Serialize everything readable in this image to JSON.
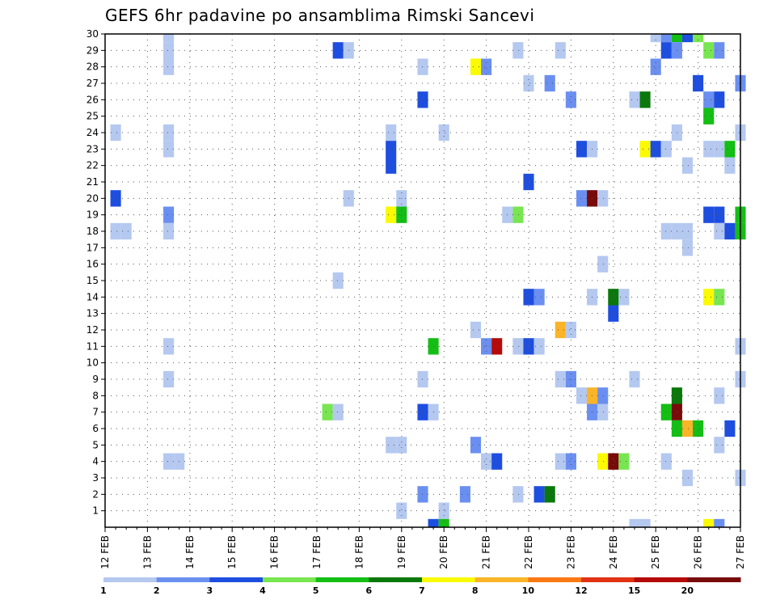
{
  "chart_data": {
    "type": "heatmap",
    "title": "GEFS 6hr padavine po ansamblima Rimski Sancevi",
    "xlabel": "",
    "ylabel": "",
    "x_tick_labels": [
      "12 FEB",
      "13 FEB",
      "14 FEB",
      "15 FEB",
      "16 FEB",
      "17 FEB",
      "18 FEB",
      "19 FEB",
      "20 FEB",
      "21 FEB",
      "22 FEB",
      "23 FEB",
      "24 FEB",
      "25 FEB",
      "26 FEB",
      "27 FEB"
    ],
    "x_range_days": [
      12,
      27
    ],
    "time_step_hours": 6,
    "y_tick_labels": [
      "1",
      "2",
      "3",
      "4",
      "5",
      "6",
      "7",
      "8",
      "9",
      "10",
      "11",
      "12",
      "13",
      "14",
      "15",
      "16",
      "17",
      "18",
      "19",
      "20",
      "21",
      "22",
      "23",
      "24",
      "25",
      "26",
      "27",
      "28",
      "29",
      "30"
    ],
    "y_range": [
      0,
      30
    ],
    "grid": true,
    "legend_placement": "bottom",
    "legend_labels": [
      "1",
      "2",
      "3",
      "4",
      "5",
      "6",
      "7",
      "8",
      "10",
      "12",
      "15",
      "20"
    ],
    "legend_colors": [
      "#b4c8f0",
      "#6a8ff0",
      "#1e4ee0",
      "#78e650",
      "#14be14",
      "#0a780a",
      "#fafa00",
      "#fab428",
      "#fa7814",
      "#e13214",
      "#b40a0a",
      "#780a0a"
    ],
    "points": [
      {
        "member": 30,
        "time": "25.00",
        "category": 0
      },
      {
        "member": 30,
        "time": "25.25",
        "category": 1
      },
      {
        "member": 30,
        "time": "25.50",
        "category": 4
      },
      {
        "member": 30,
        "time": "25.75",
        "category": 2
      },
      {
        "member": 30,
        "time": "26.00",
        "category": 3
      },
      {
        "member": 30,
        "time": "13.50",
        "category": 0
      },
      {
        "member": 29,
        "time": "13.50",
        "category": 0
      },
      {
        "member": 28,
        "time": "13.50",
        "category": 0
      },
      {
        "member": 29,
        "time": "17.50",
        "category": 2
      },
      {
        "member": 29,
        "time": "17.75",
        "category": 0
      },
      {
        "member": 29,
        "time": "21.75",
        "category": 0
      },
      {
        "member": 29,
        "time": "22.75",
        "category": 0
      },
      {
        "member": 29,
        "time": "25.25",
        "category": 2
      },
      {
        "member": 29,
        "time": "25.50",
        "category": 1
      },
      {
        "member": 29,
        "time": "26.25",
        "category": 3
      },
      {
        "member": 29,
        "time": "26.50",
        "category": 1
      },
      {
        "member": 28,
        "time": "19.50",
        "category": 0
      },
      {
        "member": 28,
        "time": "20.75",
        "category": 6
      },
      {
        "member": 28,
        "time": "21.00",
        "category": 1
      },
      {
        "member": 28,
        "time": "25.00",
        "category": 1
      },
      {
        "member": 27,
        "time": "22.00",
        "category": 0
      },
      {
        "member": 27,
        "time": "22.50",
        "category": 1
      },
      {
        "member": 27,
        "time": "26.00",
        "category": 2
      },
      {
        "member": 27,
        "time": "27.00",
        "category": 1
      },
      {
        "member": 26,
        "time": "19.50",
        "category": 2
      },
      {
        "member": 26,
        "time": "23.00",
        "category": 1
      },
      {
        "member": 26,
        "time": "24.50",
        "category": 0
      },
      {
        "member": 26,
        "time": "24.75",
        "category": 5
      },
      {
        "member": 26,
        "time": "26.25",
        "category": 1
      },
      {
        "member": 26,
        "time": "26.50",
        "category": 2
      },
      {
        "member": 25,
        "time": "26.25",
        "category": 4
      },
      {
        "member": 24,
        "time": "12.25",
        "category": 0
      },
      {
        "member": 24,
        "time": "13.50",
        "category": 0
      },
      {
        "member": 24,
        "time": "18.75",
        "category": 0
      },
      {
        "member": 24,
        "time": "20.00",
        "category": 0
      },
      {
        "member": 24,
        "time": "25.50",
        "category": 0
      },
      {
        "member": 24,
        "time": "27.00",
        "category": 0
      },
      {
        "member": 23,
        "time": "13.50",
        "category": 0
      },
      {
        "member": 23,
        "time": "18.75",
        "category": 2
      },
      {
        "member": 23,
        "time": "23.25",
        "category": 2
      },
      {
        "member": 23,
        "time": "23.50",
        "category": 0
      },
      {
        "member": 23,
        "time": "24.75",
        "category": 6
      },
      {
        "member": 23,
        "time": "25.00",
        "category": 2
      },
      {
        "member": 23,
        "time": "25.25",
        "category": 0
      },
      {
        "member": 23,
        "time": "26.25",
        "category": 0
      },
      {
        "member": 23,
        "time": "26.50",
        "category": 0
      },
      {
        "member": 23,
        "time": "26.75",
        "category": 4
      },
      {
        "member": 22,
        "time": "18.75",
        "category": 2
      },
      {
        "member": 22,
        "time": "25.75",
        "category": 0
      },
      {
        "member": 22,
        "time": "26.75",
        "category": 0
      },
      {
        "member": 21,
        "time": "22.00",
        "category": 2
      },
      {
        "member": 20,
        "time": "12.25",
        "category": 2
      },
      {
        "member": 20,
        "time": "17.75",
        "category": 0
      },
      {
        "member": 20,
        "time": "19.00",
        "category": 0
      },
      {
        "member": 20,
        "time": "23.25",
        "category": 1
      },
      {
        "member": 20,
        "time": "23.50",
        "category": 11
      },
      {
        "member": 20,
        "time": "23.75",
        "category": 0
      },
      {
        "member": 19,
        "time": "13.50",
        "category": 1
      },
      {
        "member": 19,
        "time": "18.75",
        "category": 6
      },
      {
        "member": 19,
        "time": "19.00",
        "category": 4
      },
      {
        "member": 19,
        "time": "21.50",
        "category": 0
      },
      {
        "member": 19,
        "time": "21.75",
        "category": 3
      },
      {
        "member": 19,
        "time": "26.25",
        "category": 2
      },
      {
        "member": 19,
        "time": "26.50",
        "category": 2
      },
      {
        "member": 19,
        "time": "27.00",
        "category": 4
      },
      {
        "member": 18,
        "time": "12.25",
        "category": 0
      },
      {
        "member": 18,
        "time": "12.50",
        "category": 0
      },
      {
        "member": 18,
        "time": "13.50",
        "category": 0
      },
      {
        "member": 18,
        "time": "25.25",
        "category": 0
      },
      {
        "member": 18,
        "time": "25.50",
        "category": 0
      },
      {
        "member": 18,
        "time": "25.75",
        "category": 0
      },
      {
        "member": 18,
        "time": "26.50",
        "category": 0
      },
      {
        "member": 18,
        "time": "26.75",
        "category": 2
      },
      {
        "member": 18,
        "time": "27.00",
        "category": 4
      },
      {
        "member": 17,
        "time": "25.75",
        "category": 0
      },
      {
        "member": 16,
        "time": "23.75",
        "category": 0
      },
      {
        "member": 15,
        "time": "17.50",
        "category": 0
      },
      {
        "member": 14,
        "time": "22.00",
        "category": 2
      },
      {
        "member": 14,
        "time": "22.25",
        "category": 1
      },
      {
        "member": 14,
        "time": "23.50",
        "category": 0
      },
      {
        "member": 14,
        "time": "24.00",
        "category": 5
      },
      {
        "member": 14,
        "time": "24.25",
        "category": 0
      },
      {
        "member": 14,
        "time": "26.25",
        "category": 6
      },
      {
        "member": 14,
        "time": "26.50",
        "category": 3
      },
      {
        "member": 13,
        "time": "24.00",
        "category": 2
      },
      {
        "member": 12,
        "time": "22.75",
        "category": 7
      },
      {
        "member": 12,
        "time": "23.00",
        "category": 0
      },
      {
        "member": 12,
        "time": "20.75",
        "category": 0
      },
      {
        "member": 11,
        "time": "13.50",
        "category": 0
      },
      {
        "member": 11,
        "time": "19.75",
        "category": 4
      },
      {
        "member": 11,
        "time": "21.00",
        "category": 1
      },
      {
        "member": 11,
        "time": "21.25",
        "category": 10
      },
      {
        "member": 11,
        "time": "21.75",
        "category": 0
      },
      {
        "member": 11,
        "time": "22.00",
        "category": 2
      },
      {
        "member": 11,
        "time": "22.25",
        "category": 0
      },
      {
        "member": 11,
        "time": "27.00",
        "category": 0
      },
      {
        "member": 9,
        "time": "13.50",
        "category": 0
      },
      {
        "member": 9,
        "time": "19.50",
        "category": 0
      },
      {
        "member": 9,
        "time": "22.75",
        "category": 0
      },
      {
        "member": 9,
        "time": "23.00",
        "category": 1
      },
      {
        "member": 9,
        "time": "24.50",
        "category": 0
      },
      {
        "member": 9,
        "time": "27.00",
        "category": 0
      },
      {
        "member": 8,
        "time": "23.25",
        "category": 0
      },
      {
        "member": 8,
        "time": "23.50",
        "category": 7
      },
      {
        "member": 8,
        "time": "23.75",
        "category": 1
      },
      {
        "member": 8,
        "time": "25.50",
        "category": 5
      },
      {
        "member": 8,
        "time": "26.50",
        "category": 0
      },
      {
        "member": 7,
        "time": "17.25",
        "category": 3
      },
      {
        "member": 7,
        "time": "17.50",
        "category": 0
      },
      {
        "member": 7,
        "time": "19.50",
        "category": 2
      },
      {
        "member": 7,
        "time": "19.75",
        "category": 0
      },
      {
        "member": 7,
        "time": "23.50",
        "category": 1
      },
      {
        "member": 7,
        "time": "23.75",
        "category": 0
      },
      {
        "member": 7,
        "time": "25.25",
        "category": 4
      },
      {
        "member": 7,
        "time": "25.50",
        "category": 11
      },
      {
        "member": 6,
        "time": "25.50",
        "category": 4
      },
      {
        "member": 6,
        "time": "25.75",
        "category": 7
      },
      {
        "member": 6,
        "time": "26.00",
        "category": 4
      },
      {
        "member": 6,
        "time": "26.75",
        "category": 2
      },
      {
        "member": 5,
        "time": "18.75",
        "category": 0
      },
      {
        "member": 5,
        "time": "19.00",
        "category": 0
      },
      {
        "member": 5,
        "time": "20.75",
        "category": 1
      },
      {
        "member": 5,
        "time": "26.50",
        "category": 0
      },
      {
        "member": 4,
        "time": "13.50",
        "category": 0
      },
      {
        "member": 4,
        "time": "13.75",
        "category": 0
      },
      {
        "member": 4,
        "time": "21.00",
        "category": 0
      },
      {
        "member": 4,
        "time": "21.25",
        "category": 2
      },
      {
        "member": 4,
        "time": "22.75",
        "category": 0
      },
      {
        "member": 4,
        "time": "23.00",
        "category": 1
      },
      {
        "member": 4,
        "time": "23.75",
        "category": 6
      },
      {
        "member": 4,
        "time": "24.00",
        "category": 11
      },
      {
        "member": 4,
        "time": "24.25",
        "category": 3
      },
      {
        "member": 4,
        "time": "25.25",
        "category": 0
      },
      {
        "member": 3,
        "time": "25.75",
        "category": 0
      },
      {
        "member": 3,
        "time": "27.00",
        "category": 0
      },
      {
        "member": 2,
        "time": "19.50",
        "category": 1
      },
      {
        "member": 2,
        "time": "20.50",
        "category": 1
      },
      {
        "member": 2,
        "time": "21.75",
        "category": 0
      },
      {
        "member": 2,
        "time": "22.25",
        "category": 2
      },
      {
        "member": 2,
        "time": "22.50",
        "category": 5
      },
      {
        "member": 1,
        "time": "19.00",
        "category": 0
      },
      {
        "member": 1,
        "time": "20.00",
        "category": 0
      },
      {
        "member": 0,
        "time": "19.75",
        "category": 2
      },
      {
        "member": 0,
        "time": "20.00",
        "category": 4
      },
      {
        "member": 0,
        "time": "24.50",
        "category": 0
      },
      {
        "member": 0,
        "time": "24.75",
        "category": 0
      },
      {
        "member": 0,
        "time": "26.25",
        "category": 6
      },
      {
        "member": 0,
        "time": "26.50",
        "category": 1
      }
    ]
  }
}
